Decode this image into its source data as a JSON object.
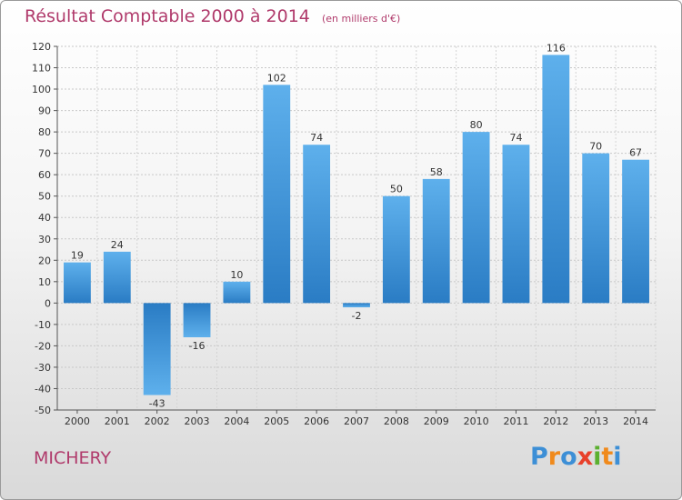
{
  "chart_data": {
    "type": "bar",
    "title": "Résultat Comptable 2000 à 2014",
    "subtitle": "(en milliers d'€)",
    "categories": [
      "2000",
      "2001",
      "2002",
      "2003",
      "2004",
      "2005",
      "2006",
      "2007",
      "2008",
      "2009",
      "2010",
      "2011",
      "2012",
      "2013",
      "2014"
    ],
    "values": [
      19,
      24,
      -43,
      -16,
      10,
      102,
      74,
      -2,
      50,
      58,
      80,
      74,
      116,
      70,
      67
    ],
    "ylim": [
      -50,
      120
    ],
    "ytick_step": 10,
    "grid": true,
    "bar_color": "#3d8fd6"
  },
  "footer": {
    "commune": "MICHERY",
    "logo_text": "Proxiti",
    "logo_colors": [
      "#3d8fd6",
      "#f08a1c",
      "#3d8fd6",
      "#e8402a",
      "#5bb030",
      "#f08a1c",
      "#3d8fd6"
    ]
  }
}
